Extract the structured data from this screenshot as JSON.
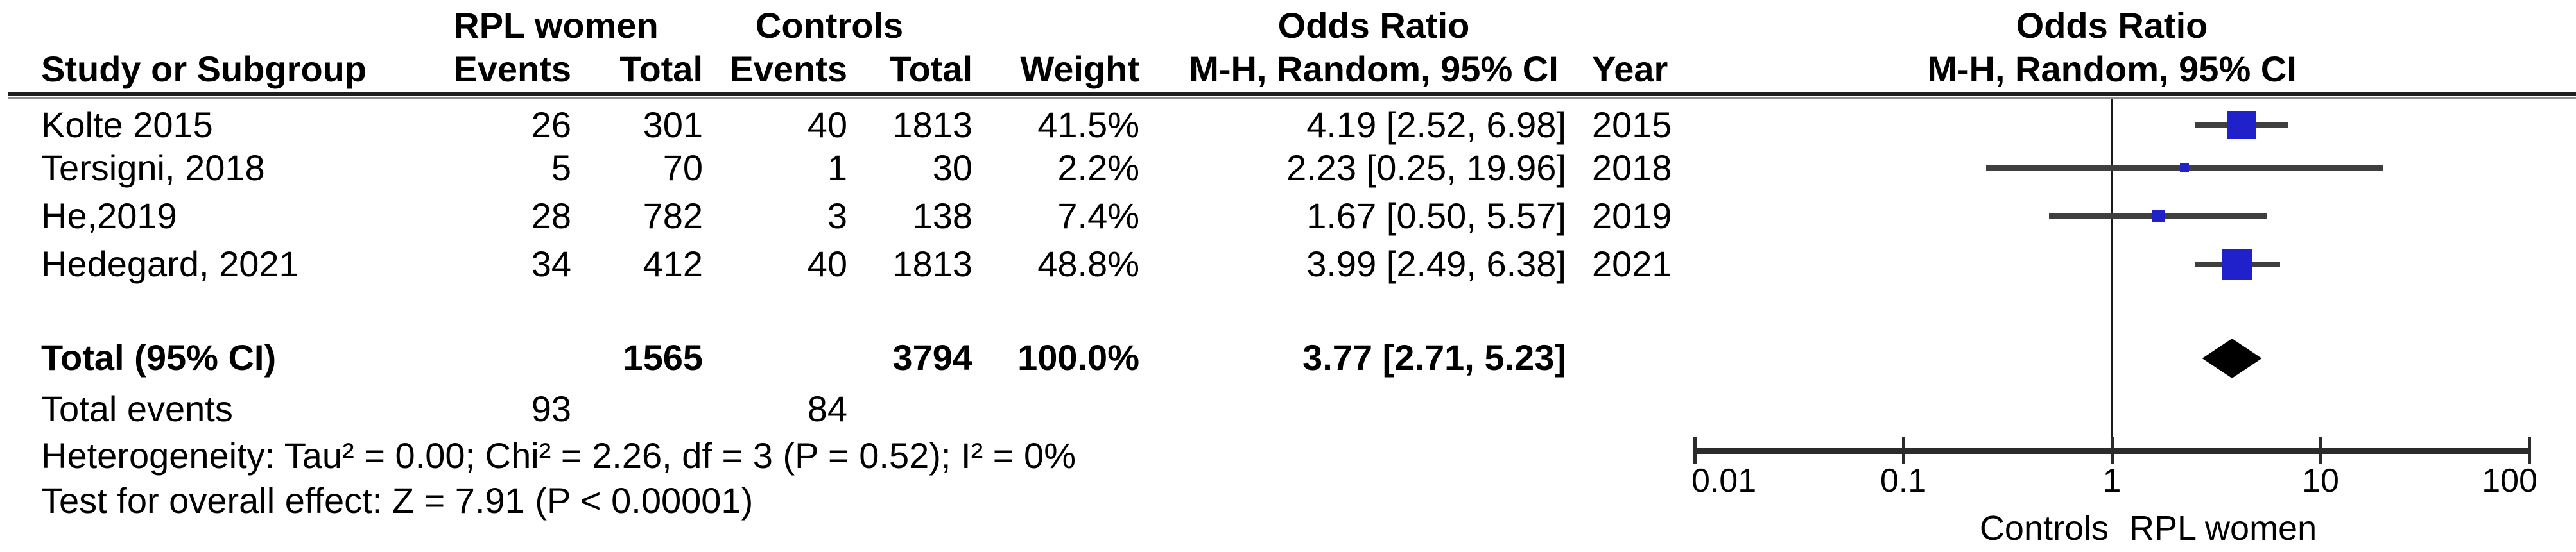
{
  "table": {
    "groups": {
      "rpl": "RPL women",
      "controls": "Controls",
      "odds_ratio_left": "Odds Ratio",
      "odds_ratio_right": "Odds Ratio"
    },
    "columns": {
      "study": "Study or Subgroup",
      "events_rpl": "Events",
      "total_rpl": "Total",
      "events_ctrl": "Events",
      "total_ctrl": "Total",
      "weight": "Weight",
      "mh_ci": "M-H, Random, 95% CI",
      "year": "Year",
      "mh_ci_right": "M-H, Random, 95% CI"
    },
    "total_events": {
      "label": "Total events",
      "rpl": "93",
      "ctrl": "84"
    },
    "heterogeneity": "Heterogeneity: Tau² = 0.00; Chi² = 2.26, df = 3 (P = 0.52); I² = 0%",
    "overall_effect": "Test for overall effect: Z = 7.91 (P < 0.00001)"
  },
  "colors": {
    "marker_blue": "#2121cc",
    "ci_line": "#3f3f3f",
    "axis": "#2b2b2b",
    "diamond": "#000000",
    "null_line": "#1a1a1a"
  },
  "chart_data": {
    "type": "forest",
    "scale": "log10",
    "effect_measure": "Odds Ratio, M-H, Random, 95% CI",
    "x_ticks": [
      0.01,
      0.1,
      1,
      10,
      100
    ],
    "x_tick_labels": [
      "0.01",
      "0.1",
      "1",
      "10",
      "100"
    ],
    "null_line_value": 1,
    "axis_label_left": "Controls",
    "axis_label_right": "RPL women",
    "studies": [
      {
        "study": "Kolte 2015",
        "events_rpl": "26",
        "total_rpl": "301",
        "events_ctrl": "40",
        "total_ctrl": "1813",
        "weight": "41.5%",
        "weight_pct": 41.5,
        "or": 4.19,
        "ci_low": 2.52,
        "ci_high": 6.98,
        "or_ci_label": "4.19 [2.52, 6.98]",
        "year": "2015"
      },
      {
        "study": "Tersigni, 2018",
        "events_rpl": "5",
        "total_rpl": "70",
        "events_ctrl": "1",
        "total_ctrl": "30",
        "weight": "2.2%",
        "weight_pct": 2.2,
        "or": 2.23,
        "ci_low": 0.25,
        "ci_high": 19.96,
        "or_ci_label": "2.23 [0.25, 19.96]",
        "year": "2018"
      },
      {
        "study": "He,2019",
        "events_rpl": "28",
        "total_rpl": "782",
        "events_ctrl": "3",
        "total_ctrl": "138",
        "weight": "7.4%",
        "weight_pct": 7.4,
        "or": 1.67,
        "ci_low": 0.5,
        "ci_high": 5.57,
        "or_ci_label": "1.67 [0.50, 5.57]",
        "year": "2019"
      },
      {
        "study": "Hedegard, 2021",
        "events_rpl": "34",
        "total_rpl": "412",
        "events_ctrl": "40",
        "total_ctrl": "1813",
        "weight": "48.8%",
        "weight_pct": 48.8,
        "or": 3.99,
        "ci_low": 2.49,
        "ci_high": 6.38,
        "or_ci_label": "3.99 [2.49, 6.38]",
        "year": "2021"
      }
    ],
    "total": {
      "label": "Total (95% CI)",
      "total_rpl": "1565",
      "total_ctrl": "3794",
      "weight": "100.0%",
      "weight_pct": 100.0,
      "or": 3.77,
      "ci_low": 2.71,
      "ci_high": 5.23,
      "or_ci_label": "3.77 [2.71, 5.23]"
    }
  }
}
